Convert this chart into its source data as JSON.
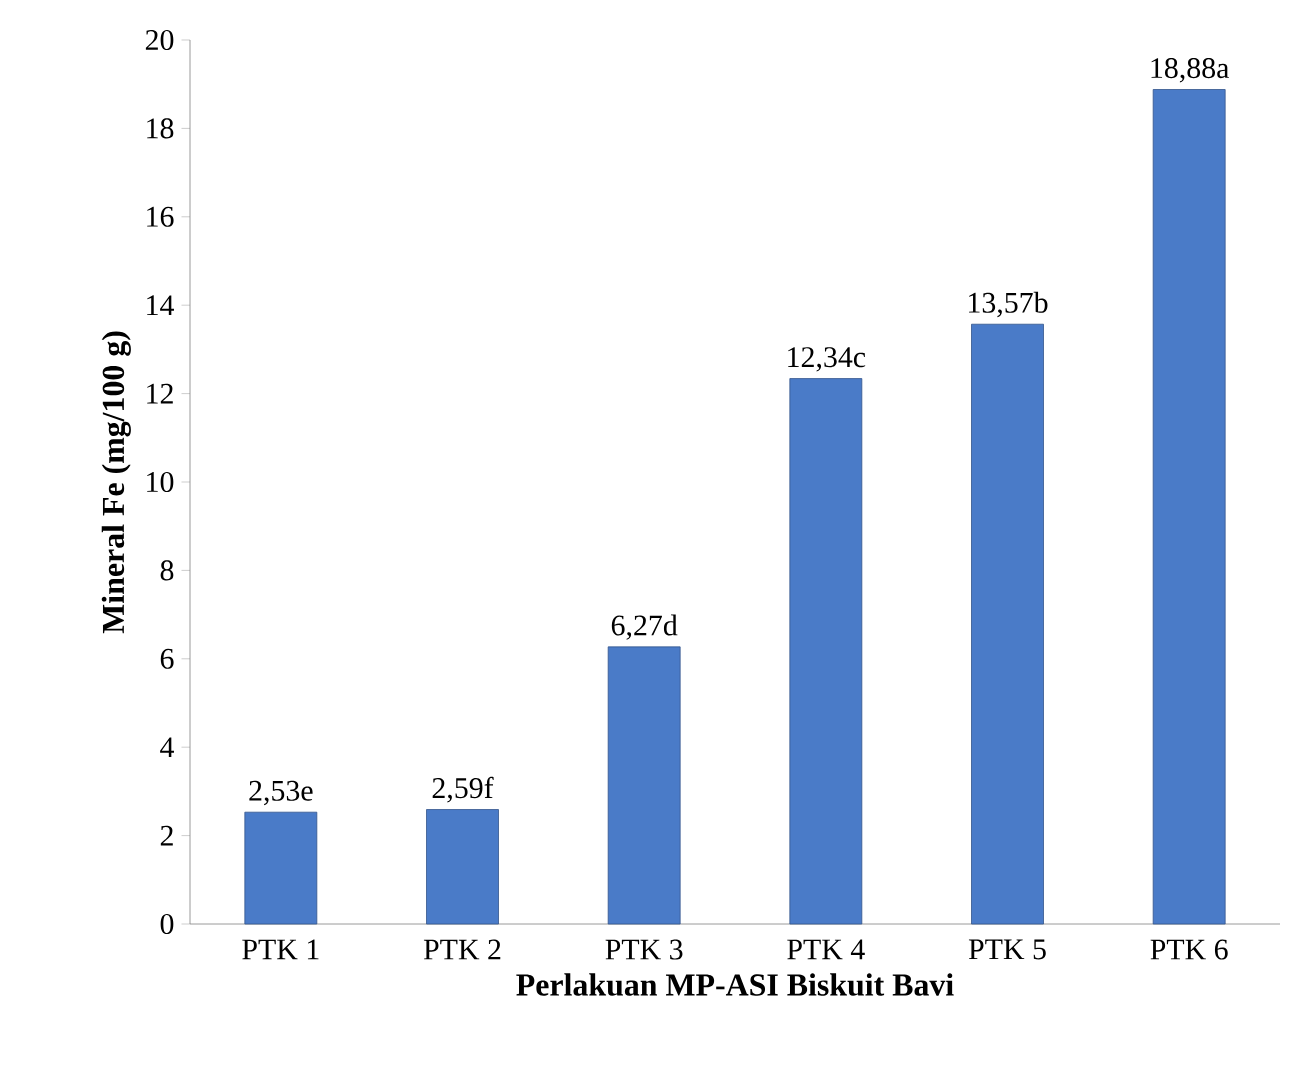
{
  "chart_data": {
    "type": "bar",
    "xlabel": "Perlakuan MP-ASI Biskuit Bavi",
    "ylabel": "Mineral Fe (mg/100 g)",
    "categories": [
      "PTK 1",
      "PTK 2",
      "PTK 3",
      "PTK 4",
      "PTK 5",
      "PTK 6"
    ],
    "values": [
      2.53,
      2.59,
      6.27,
      12.34,
      13.57,
      18.88
    ],
    "value_labels": [
      "2,53e",
      "2,59f",
      "6,27d",
      "12,34c",
      "13,57b",
      "18,88a"
    ],
    "color": "#4a7bc8",
    "ylim": [
      0,
      20
    ],
    "yticks": [
      0,
      2,
      4,
      6,
      8,
      10,
      12,
      14,
      16,
      18,
      20
    ],
    "grid": false
  }
}
